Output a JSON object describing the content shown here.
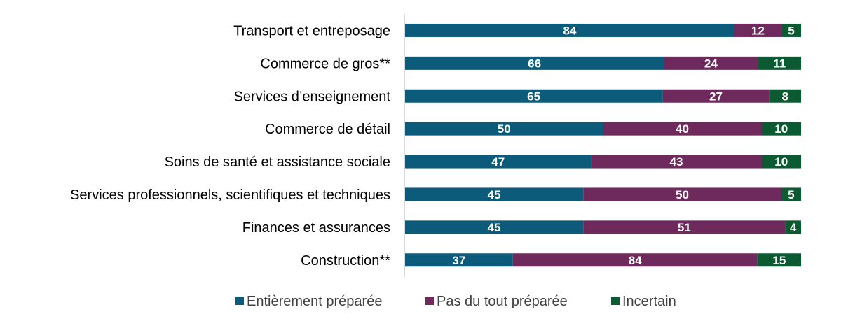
{
  "chart_data": {
    "type": "bar",
    "orientation": "horizontal",
    "stacked": true,
    "title": "",
    "xlabel": "",
    "ylabel": "",
    "categories": [
      "Transport et entreposage",
      "Commerce de gros**",
      "Services d’enseignement",
      "Commerce de détail",
      "Soins de santé et assistance sociale",
      "Services professionnels, scientifiques et techniques",
      "Finances et assurances",
      "Construction**"
    ],
    "series": [
      {
        "name": "Entièrement préparée",
        "color": "#0d5b7a",
        "values": [
          84,
          66,
          65,
          50,
          47,
          45,
          45,
          37
        ]
      },
      {
        "name": "Pas du tout préparée",
        "color": "#6e2a5c",
        "values": [
          12,
          24,
          27,
          40,
          43,
          50,
          51,
          84
        ]
      },
      {
        "name": "Incertain",
        "color": "#0b5a32",
        "values": [
          5,
          11,
          8,
          10,
          10,
          5,
          4,
          15
        ]
      }
    ],
    "legend": {
      "position": "bottom"
    },
    "grid": false
  }
}
